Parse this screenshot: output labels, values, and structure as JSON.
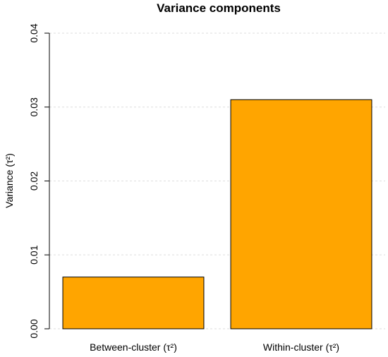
{
  "chart_data": {
    "type": "bar",
    "title": "Variance components",
    "ylabel": "Variance (τ²)",
    "xlabel": "",
    "categories": [
      "Between-cluster (τ²)",
      "Within-cluster (τ²)"
    ],
    "values": [
      0.007,
      0.031
    ],
    "ylim": [
      0,
      0.04
    ],
    "yticks": [
      "0.00",
      "0.01",
      "0.02",
      "0.03",
      "0.04"
    ],
    "grid": true,
    "bar_color": "#FFA500"
  }
}
